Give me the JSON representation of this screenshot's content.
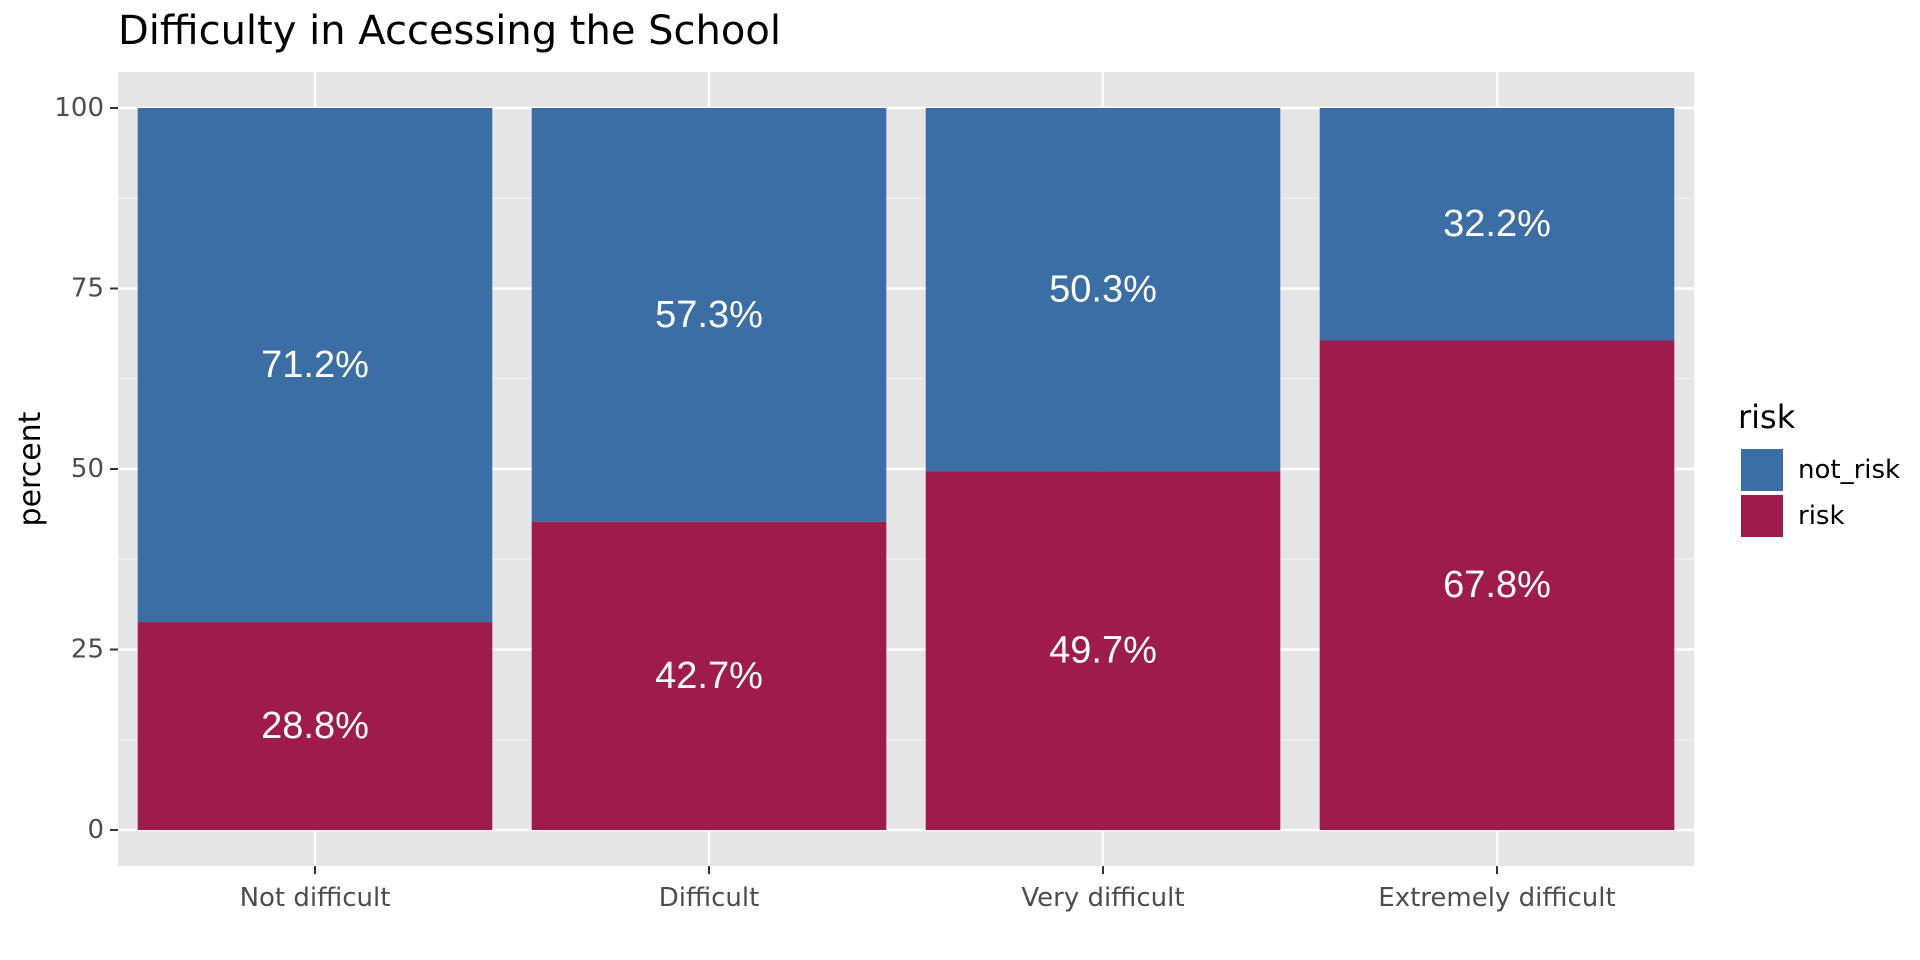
{
  "chart_data": {
    "type": "bar",
    "stacked": true,
    "title": "Difficulty in Accessing the School",
    "xlabel": "",
    "ylabel": "percent",
    "ylim": [
      0,
      100
    ],
    "yticks": [
      0,
      25,
      50,
      75,
      100
    ],
    "categories": [
      "Not difficult",
      "Difficult",
      "Very difficult",
      "Extremely difficult"
    ],
    "series": [
      {
        "name": "risk",
        "color": "#9e1b4b",
        "values": [
          28.8,
          42.7,
          49.7,
          67.8
        ],
        "labels": [
          "28.8%",
          "42.7%",
          "49.7%",
          "67.8%"
        ]
      },
      {
        "name": "not_risk",
        "color": "#3a6ea5",
        "values": [
          71.2,
          57.3,
          50.3,
          32.2
        ],
        "labels": [
          "71.2%",
          "57.3%",
          "50.3%",
          "32.2%"
        ]
      }
    ],
    "legend": {
      "title": "risk",
      "position": "right",
      "entries": [
        "not_risk",
        "risk"
      ]
    },
    "grid": true,
    "panel_background": "#e5e5e5"
  }
}
